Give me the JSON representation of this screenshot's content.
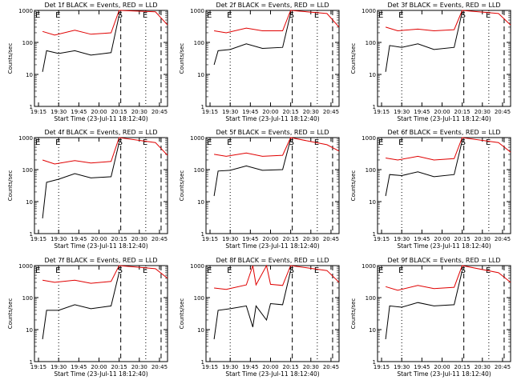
{
  "chart_data": [
    {
      "type": "line",
      "title": "Det 1f BLACK = Events, RED = LLD",
      "xlabel": "Start Time (23-Jul-11 18:12:40)",
      "ylabel": "Counts/sec",
      "ylim": [
        1,
        1000
      ],
      "yscale": "log",
      "yticks": [
        "1",
        "10",
        "100",
        "1000"
      ],
      "xticks": [
        "19:15",
        "19:30",
        "19:45",
        "20:00",
        "20:15",
        "20:30",
        "20:45"
      ],
      "markers": [
        {
          "label": "E",
          "style": "dotted"
        },
        {
          "label": "S",
          "style": "dashed"
        },
        {
          "label": "E",
          "style": "dotted"
        },
        {
          "label": "",
          "style": "dashed"
        }
      ],
      "series": [
        {
          "name": "Events",
          "color": "#000000",
          "values": [
            [
              19.3,
              12
            ],
            [
              19.35,
              55
            ],
            [
              19.5,
              45
            ],
            [
              19.7,
              55
            ],
            [
              19.9,
              40
            ],
            [
              20.15,
              48
            ],
            [
              20.25,
              700
            ]
          ]
        },
        {
          "name": "LLD",
          "color": "#e00000",
          "values": [
            [
              19.3,
              220
            ],
            [
              19.45,
              170
            ],
            [
              19.7,
              240
            ],
            [
              19.9,
              180
            ],
            [
              20.15,
              200
            ],
            [
              20.25,
              1000
            ],
            [
              20.7,
              900
            ],
            [
              20.85,
              350
            ]
          ]
        }
      ]
    },
    {
      "type": "line",
      "title": "Det 2f BLACK = Events, RED = LLD",
      "xlabel": "Start Time (23-Jul-11 18:12:40)",
      "ylabel": "Counts/sec",
      "ylim": [
        1,
        1000
      ],
      "yscale": "log",
      "yticks": [
        "1",
        "10",
        "100",
        "1000"
      ],
      "xticks": [
        "19:15",
        "19:30",
        "19:45",
        "20:00",
        "20:15",
        "20:30",
        "20:45"
      ],
      "markers": [
        {
          "label": "E",
          "style": "dotted"
        },
        {
          "label": "S",
          "style": "dashed"
        },
        {
          "label": "E",
          "style": "dotted"
        },
        {
          "label": "",
          "style": "dashed"
        }
      ],
      "series": [
        {
          "name": "Events",
          "color": "#000000",
          "values": [
            [
              19.3,
              20
            ],
            [
              19.35,
              55
            ],
            [
              19.5,
              60
            ],
            [
              19.7,
              90
            ],
            [
              19.9,
              65
            ],
            [
              20.15,
              70
            ],
            [
              20.25,
              800
            ]
          ]
        },
        {
          "name": "LLD",
          "color": "#e00000",
          "values": [
            [
              19.3,
              230
            ],
            [
              19.45,
              200
            ],
            [
              19.7,
              280
            ],
            [
              19.9,
              230
            ],
            [
              20.15,
              230
            ],
            [
              20.25,
              1000
            ],
            [
              20.7,
              800
            ],
            [
              20.85,
              300
            ]
          ]
        }
      ]
    },
    {
      "type": "line",
      "title": "Det 3f BLACK = Events, RED = LLD",
      "xlabel": "Start Time (23-Jul-11 18:12:40)",
      "ylabel": "Counts/sec",
      "ylim": [
        1,
        1000
      ],
      "yscale": "log",
      "yticks": [
        "1",
        "10",
        "100",
        "1000"
      ],
      "xticks": [
        "19:15",
        "19:30",
        "19:45",
        "20:00",
        "20:15",
        "20:30",
        "20:45"
      ],
      "markers": [
        {
          "label": "E",
          "style": "dotted"
        },
        {
          "label": "S",
          "style": "dashed"
        },
        {
          "label": "E",
          "style": "dotted"
        },
        {
          "label": "",
          "style": "dashed"
        }
      ],
      "series": [
        {
          "name": "Events",
          "color": "#000000",
          "values": [
            [
              19.3,
              12
            ],
            [
              19.35,
              80
            ],
            [
              19.5,
              70
            ],
            [
              19.7,
              90
            ],
            [
              19.9,
              60
            ],
            [
              20.15,
              70
            ],
            [
              20.25,
              900
            ]
          ]
        },
        {
          "name": "LLD",
          "color": "#e00000",
          "values": [
            [
              19.3,
              300
            ],
            [
              19.45,
              230
            ],
            [
              19.7,
              260
            ],
            [
              19.9,
              230
            ],
            [
              20.15,
              250
            ],
            [
              20.25,
              1000
            ],
            [
              20.7,
              800
            ],
            [
              20.85,
              350
            ]
          ]
        }
      ]
    },
    {
      "type": "line",
      "title": "Det 4f BLACK = Events, RED = LLD",
      "xlabel": "Start Time (23-Jul-11 18:12:40)",
      "ylabel": "Counts/sec",
      "ylim": [
        1,
        1000
      ],
      "yscale": "log",
      "yticks": [
        "1",
        "10",
        "100",
        "1000"
      ],
      "xticks": [
        "19:15",
        "19:30",
        "19:45",
        "20:00",
        "20:15",
        "20:30",
        "20:45"
      ],
      "markers": [
        {
          "label": "E",
          "style": "dotted"
        },
        {
          "label": "S",
          "style": "dashed"
        },
        {
          "label": "E",
          "style": "dotted"
        },
        {
          "label": "",
          "style": "dashed"
        }
      ],
      "series": [
        {
          "name": "Events",
          "color": "#000000",
          "values": [
            [
              19.3,
              3
            ],
            [
              19.35,
              40
            ],
            [
              19.5,
              50
            ],
            [
              19.7,
              75
            ],
            [
              19.9,
              55
            ],
            [
              20.15,
              60
            ],
            [
              20.25,
              700
            ]
          ]
        },
        {
          "name": "LLD",
          "color": "#e00000",
          "values": [
            [
              19.3,
              200
            ],
            [
              19.45,
              150
            ],
            [
              19.7,
              190
            ],
            [
              19.9,
              160
            ],
            [
              20.15,
              180
            ],
            [
              20.25,
              1000
            ],
            [
              20.7,
              700
            ],
            [
              20.85,
              280
            ]
          ]
        }
      ]
    },
    {
      "type": "line",
      "title": "Det 5f BLACK = Events, RED = LLD",
      "xlabel": "Start Time (23-Jul-11 18:12:40)",
      "ylabel": "Counts/sec",
      "ylim": [
        1,
        1000
      ],
      "yscale": "log",
      "yticks": [
        "1",
        "10",
        "100",
        "1000"
      ],
      "xticks": [
        "19:15",
        "19:30",
        "19:45",
        "20:00",
        "20:15",
        "20:30",
        "20:45"
      ],
      "markers": [
        {
          "label": "E",
          "style": "dotted"
        },
        {
          "label": "S",
          "style": "dashed"
        },
        {
          "label": "E",
          "style": "dotted"
        },
        {
          "label": "",
          "style": "dashed"
        }
      ],
      "series": [
        {
          "name": "Events",
          "color": "#000000",
          "values": [
            [
              19.3,
              15
            ],
            [
              19.35,
              90
            ],
            [
              19.5,
              95
            ],
            [
              19.7,
              130
            ],
            [
              19.9,
              95
            ],
            [
              20.15,
              100
            ],
            [
              20.25,
              900
            ]
          ]
        },
        {
          "name": "LLD",
          "color": "#e00000",
          "values": [
            [
              19.3,
              300
            ],
            [
              19.45,
              260
            ],
            [
              19.7,
              330
            ],
            [
              19.9,
              260
            ],
            [
              20.15,
              280
            ],
            [
              20.25,
              1000
            ],
            [
              20.7,
              600
            ],
            [
              20.85,
              380
            ]
          ]
        }
      ]
    },
    {
      "type": "line",
      "title": "Det 6f BLACK = Events, RED = LLD",
      "xlabel": "Start Time (23-Jul-11 18:12:40)",
      "ylabel": "Counts/sec",
      "ylim": [
        1,
        1000
      ],
      "yscale": "log",
      "yticks": [
        "1",
        "10",
        "100",
        "1000"
      ],
      "xticks": [
        "19:15",
        "19:30",
        "19:45",
        "20:00",
        "20:15",
        "20:30",
        "20:45"
      ],
      "markers": [
        {
          "label": "E",
          "style": "dotted"
        },
        {
          "label": "S",
          "style": "dashed"
        },
        {
          "label": "E",
          "style": "dotted"
        },
        {
          "label": "",
          "style": "dashed"
        }
      ],
      "series": [
        {
          "name": "Events",
          "color": "#000000",
          "values": [
            [
              19.3,
              15
            ],
            [
              19.35,
              70
            ],
            [
              19.5,
              65
            ],
            [
              19.7,
              85
            ],
            [
              19.9,
              60
            ],
            [
              20.15,
              70
            ],
            [
              20.25,
              800
            ]
          ]
        },
        {
          "name": "LLD",
          "color": "#e00000",
          "values": [
            [
              19.3,
              230
            ],
            [
              19.45,
              200
            ],
            [
              19.7,
              260
            ],
            [
              19.9,
              200
            ],
            [
              20.15,
              220
            ],
            [
              20.25,
              1000
            ],
            [
              20.7,
              700
            ],
            [
              20.85,
              350
            ]
          ]
        }
      ]
    },
    {
      "type": "line",
      "title": "Det 7f BLACK = Events, RED = LLD",
      "xlabel": "Start Time (23-Jul-11 18:12:40)",
      "ylabel": "Counts/sec",
      "ylim": [
        1,
        1000
      ],
      "yscale": "log",
      "yticks": [
        "1",
        "10",
        "100",
        "1000"
      ],
      "xticks": [
        "19:15",
        "19:30",
        "19:45",
        "20:00",
        "20:15",
        "20:30",
        "20:45"
      ],
      "markers": [
        {
          "label": "E",
          "style": "dotted"
        },
        {
          "label": "S",
          "style": "dashed"
        },
        {
          "label": "E",
          "style": "dotted"
        },
        {
          "label": "",
          "style": "dashed"
        }
      ],
      "series": [
        {
          "name": "Events",
          "color": "#000000",
          "values": [
            [
              19.3,
              5
            ],
            [
              19.35,
              40
            ],
            [
              19.5,
              40
            ],
            [
              19.7,
              60
            ],
            [
              19.9,
              45
            ],
            [
              20.15,
              55
            ],
            [
              20.25,
              600
            ]
          ]
        },
        {
          "name": "LLD",
          "color": "#e00000",
          "values": [
            [
              19.3,
              350
            ],
            [
              19.45,
              300
            ],
            [
              19.7,
              350
            ],
            [
              19.9,
              280
            ],
            [
              20.15,
              320
            ],
            [
              20.25,
              1000
            ],
            [
              20.7,
              800
            ],
            [
              20.85,
              400
            ]
          ]
        }
      ]
    },
    {
      "type": "line",
      "title": "Det 8f BLACK = Events, RED = LLD",
      "xlabel": "Start Time (23-Jul-11 18:12:40)",
      "ylabel": "Counts/sec",
      "ylim": [
        1,
        1000
      ],
      "yscale": "log",
      "yticks": [
        "1",
        "10",
        "100",
        "1000"
      ],
      "xticks": [
        "19:15",
        "19:30",
        "19:45",
        "20:00",
        "20:15",
        "20:30",
        "20:45"
      ],
      "markers": [
        {
          "label": "E",
          "style": "dotted"
        },
        {
          "label": "S",
          "style": "dashed"
        },
        {
          "label": "E",
          "style": "dotted"
        },
        {
          "label": "",
          "style": "dashed"
        }
      ],
      "series": [
        {
          "name": "Events",
          "color": "#000000",
          "values": [
            [
              19.3,
              5
            ],
            [
              19.35,
              40
            ],
            [
              19.5,
              45
            ],
            [
              19.7,
              55
            ],
            [
              19.78,
              12
            ],
            [
              19.82,
              55
            ],
            [
              19.95,
              20
            ],
            [
              20.0,
              65
            ],
            [
              20.15,
              60
            ],
            [
              20.25,
              700
            ]
          ]
        },
        {
          "name": "LLD",
          "color": "#e00000",
          "values": [
            [
              19.3,
              200
            ],
            [
              19.45,
              180
            ],
            [
              19.7,
              250
            ],
            [
              19.78,
              1000
            ],
            [
              19.82,
              250
            ],
            [
              19.95,
              1000
            ],
            [
              20.0,
              260
            ],
            [
              20.15,
              240
            ],
            [
              20.25,
              1000
            ],
            [
              20.7,
              700
            ],
            [
              20.85,
              300
            ]
          ]
        }
      ]
    },
    {
      "type": "line",
      "title": "Det 9f BLACK = Events, RED = LLD",
      "xlabel": "Start Time (23-Jul-11 18:12:40)",
      "ylabel": "Counts/sec",
      "ylim": [
        1,
        1000
      ],
      "yscale": "log",
      "yticks": [
        "1",
        "10",
        "100",
        "1000"
      ],
      "xticks": [
        "19:15",
        "19:30",
        "19:45",
        "20:00",
        "20:15",
        "20:30",
        "20:45"
      ],
      "markers": [
        {
          "label": "E",
          "style": "dotted"
        },
        {
          "label": "S",
          "style": "dashed"
        },
        {
          "label": "E",
          "style": "dotted"
        },
        {
          "label": "",
          "style": "dashed"
        }
      ],
      "series": [
        {
          "name": "Events",
          "color": "#000000",
          "values": [
            [
              19.3,
              5
            ],
            [
              19.35,
              55
            ],
            [
              19.5,
              50
            ],
            [
              19.7,
              70
            ],
            [
              19.9,
              55
            ],
            [
              20.15,
              60
            ],
            [
              20.25,
              700
            ]
          ]
        },
        {
          "name": "LLD",
          "color": "#e00000",
          "values": [
            [
              19.3,
              220
            ],
            [
              19.45,
              170
            ],
            [
              19.7,
              240
            ],
            [
              19.9,
              190
            ],
            [
              20.15,
              210
            ],
            [
              20.25,
              1000
            ],
            [
              20.7,
              600
            ],
            [
              20.85,
              300
            ]
          ]
        }
      ]
    }
  ]
}
